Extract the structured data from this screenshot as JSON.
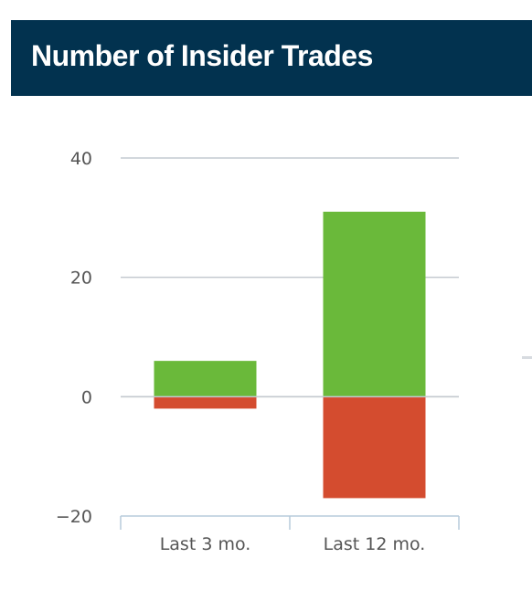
{
  "header": {
    "title": "Number of Insider Trades"
  },
  "colors": {
    "header_bg": "#02324f",
    "header_text": "#ffffff",
    "positive": "#6ab93a",
    "negative": "#d44c2f",
    "grid": "#c4cad0",
    "axis": "#b7cbdb",
    "tick_text": "#555555"
  },
  "chart_data": {
    "type": "bar",
    "stacked": true,
    "categories": [
      "Last 3 mo.",
      "Last 12 mo."
    ],
    "series": [
      {
        "values": [
          6,
          31
        ],
        "color": "#6ab93a"
      },
      {
        "values": [
          -2,
          -17
        ],
        "color": "#d44c2f"
      }
    ],
    "y_ticks": [
      40,
      20,
      0,
      -20
    ],
    "y_tick_labels": [
      "40",
      "20",
      "0",
      "−20"
    ],
    "ylim": [
      -20,
      40
    ],
    "grid": true,
    "legend": "none"
  }
}
